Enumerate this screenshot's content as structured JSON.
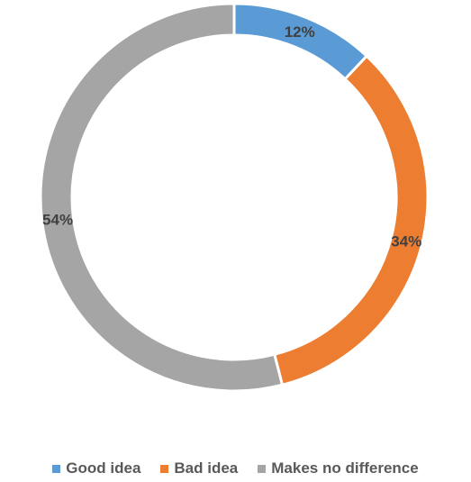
{
  "chart_data": {
    "type": "pie",
    "variant": "doughnut",
    "categories": [
      "Good idea",
      "Bad idea",
      "Makes no difference"
    ],
    "values": [
      12,
      34,
      54
    ],
    "data_labels": [
      "12%",
      "34%",
      "54%"
    ],
    "colors": [
      "#5B9BD5",
      "#ED7D31",
      "#A5A5A5"
    ],
    "legend_position": "bottom",
    "title": ""
  }
}
